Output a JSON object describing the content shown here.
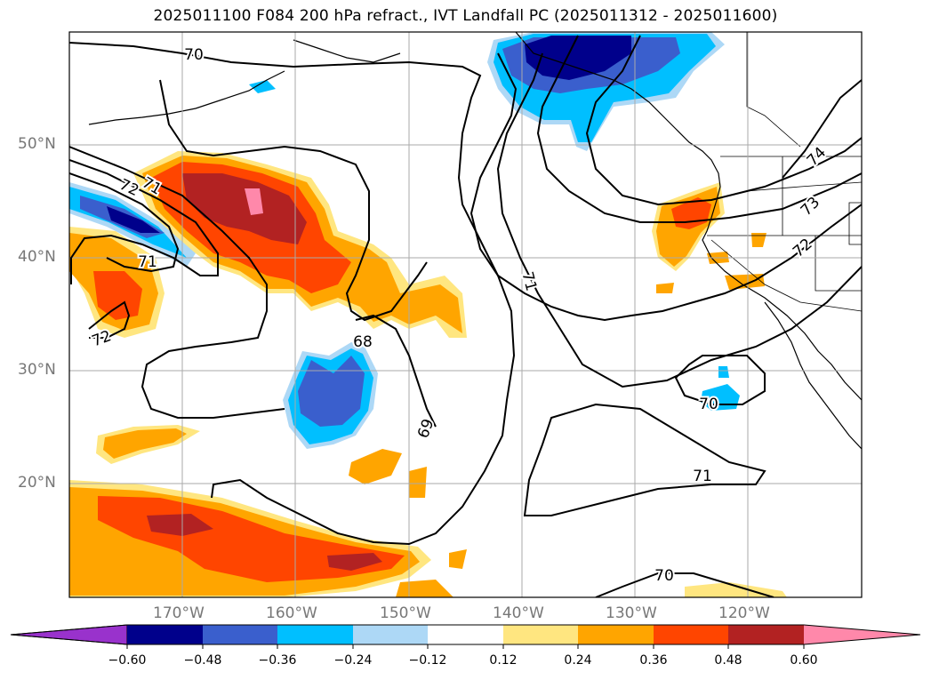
{
  "title": "2025011100 F084 200 hPa refract., IVT Landfall PC (2025011312 - 2025011600)",
  "map": {
    "lat_ticks": [
      "50°N",
      "40°N",
      "30°N",
      "20°N"
    ],
    "lon_ticks": [
      "170°W",
      "160°W",
      "150°W",
      "140°W",
      "130°W",
      "120°W"
    ],
    "contour_labels": [
      "70",
      "72",
      "71",
      "71",
      "72",
      "68",
      "69",
      "71",
      "70",
      "71",
      "70",
      "72",
      "73",
      "74"
    ]
  },
  "colorbar": {
    "ticks": [
      "−0.60",
      "−0.48",
      "−0.36",
      "−0.24",
      "−0.12",
      "0.12",
      "0.24",
      "0.36",
      "0.48",
      "0.60"
    ],
    "colors": [
      "#9932cc",
      "#00008b",
      "#3a5fcd",
      "#00bfff",
      "#add8f6",
      "#ffffff",
      "#ffe680",
      "#ffa500",
      "#ff4500",
      "#b22222",
      "#ff88aa"
    ]
  }
}
